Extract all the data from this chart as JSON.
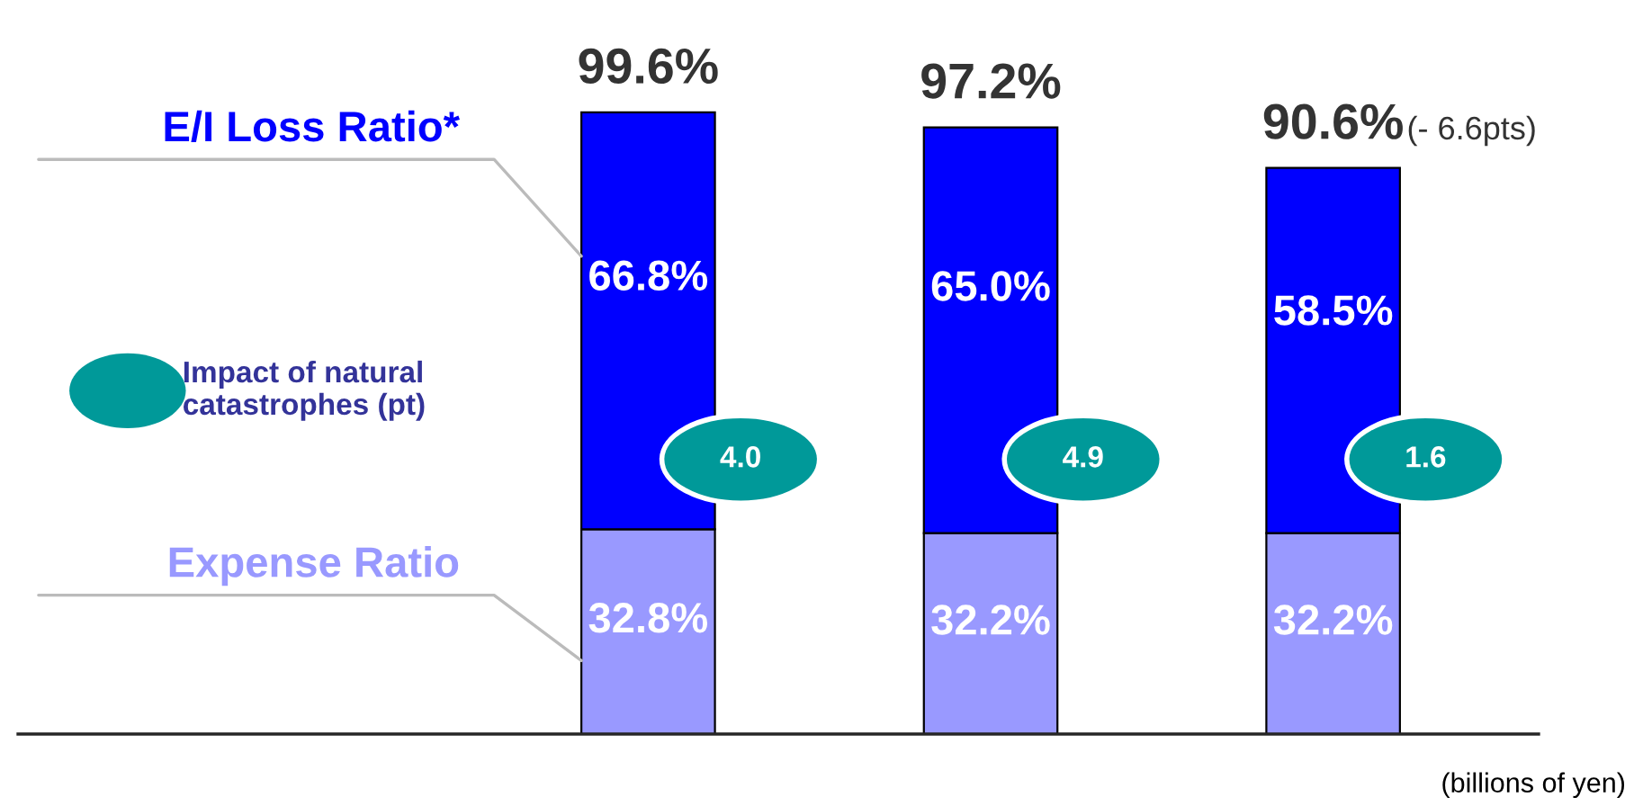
{
  "chart_data": {
    "type": "bar",
    "stacked": true,
    "categories": [
      null,
      null,
      null
    ],
    "series": [
      {
        "name": "Expense Ratio",
        "color": "#9999ff",
        "values": [
          32.8,
          32.2,
          32.2
        ],
        "value_labels": [
          "32.8%",
          "32.2%",
          "32.2%"
        ]
      },
      {
        "name": "E/I Loss Ratio*",
        "color": "#0000ff",
        "values": [
          66.8,
          65.0,
          58.5
        ],
        "value_labels": [
          "66.8%",
          "65.0%",
          "58.5%"
        ]
      }
    ],
    "totals": [
      "99.6%",
      "97.2%",
      "90.6%"
    ],
    "annotations": [
      "4.0",
      "4.9",
      "1.6",
      "Impact of natural catastrophes (pt)",
      "(- 6.6pts)",
      "(billions of yen)"
    ],
    "legend": false
  }
}
